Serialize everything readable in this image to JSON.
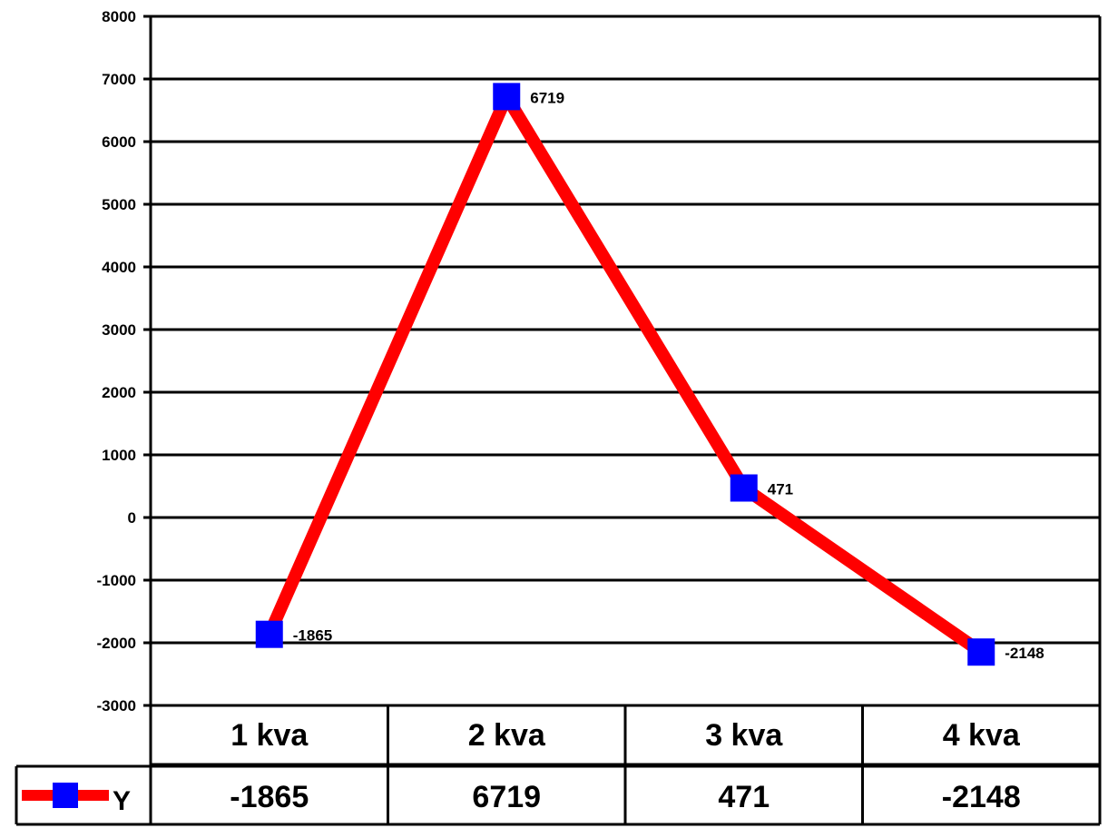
{
  "chart_data": {
    "type": "line",
    "categories": [
      "1 kva",
      "2 kva",
      "3 kva",
      "4 kva"
    ],
    "series": [
      {
        "name": "Y",
        "values": [
          -1865,
          6719,
          471,
          -2148
        ],
        "line_color": "#ff0000",
        "marker_color": "#0000ff",
        "marker": "square"
      }
    ],
    "ylim": [
      -3000,
      8000
    ],
    "yticks": [
      8000,
      7000,
      6000,
      5000,
      4000,
      3000,
      2000,
      1000,
      0,
      -1000,
      -2000,
      -3000
    ],
    "ytick_labels": [
      "8000",
      "7000",
      "6000",
      "5000",
      "4000",
      "3000",
      "2000",
      "1000",
      "0",
      "-1000",
      "-2000",
      "-3000"
    ],
    "data_labels": [
      "-1865",
      "6719",
      "471",
      "-2148"
    ],
    "table_values": [
      "-1865",
      "6719",
      "471",
      "-2148"
    ],
    "grid": true,
    "data_table": true,
    "legend_in_table": true
  }
}
